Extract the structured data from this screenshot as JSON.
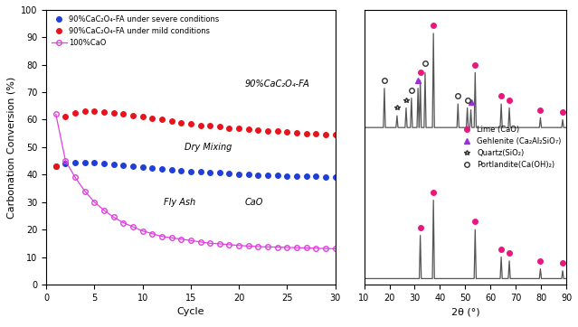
{
  "chart_data": [
    {
      "type": "line",
      "x_label": "Cycle",
      "y_label": "Carbonation Conversion (%)",
      "xlim": [
        0,
        30
      ],
      "xticks": [
        0,
        5,
        10,
        15,
        20,
        25,
        30
      ],
      "ylim": [
        0,
        100
      ],
      "yticks": [
        0,
        10,
        20,
        30,
        40,
        50,
        60,
        70,
        80,
        90,
        100
      ],
      "legend": "upper left",
      "annotations": [
        "90%CaC₂O₄-FA",
        "Dry Mixing",
        "Fly Ash",
        "CaO"
      ],
      "x": [
        1,
        2,
        3,
        4,
        5,
        6,
        7,
        8,
        9,
        10,
        11,
        12,
        13,
        14,
        15,
        16,
        17,
        18,
        19,
        20,
        21,
        22,
        23,
        24,
        25,
        26,
        27,
        28,
        29,
        30
      ],
      "series": [
        {
          "name": "90%CaC₂O₄-FA under severe conditions",
          "color": "#1f3fd6",
          "type": "scatter",
          "marker": "circle",
          "values": [
            43,
            44,
            44.5,
            44.5,
            44.3,
            44,
            43.7,
            43.4,
            43,
            42.7,
            42.4,
            42,
            41.7,
            41.5,
            41.2,
            41,
            40.8,
            40.6,
            40.4,
            40.2,
            40,
            39.9,
            39.8,
            39.7,
            39.6,
            39.5,
            39.4,
            39.3,
            39.2,
            39
          ]
        },
        {
          "name": "90%CaC₂O₄-FA under mild conditions",
          "color": "#e8141b",
          "type": "scatter",
          "marker": "circle",
          "values": [
            43,
            61,
            62.5,
            63,
            63,
            62.8,
            62.5,
            62,
            61.5,
            61,
            60.5,
            60,
            59.5,
            59,
            58.5,
            58,
            57.8,
            57.5,
            57,
            56.8,
            56.5,
            56.2,
            56,
            55.8,
            55.5,
            55.2,
            55,
            54.8,
            54.6,
            54.5
          ]
        },
        {
          "name": "100%CaO",
          "color": "#e040e0",
          "type": "line",
          "marker": "open_circle",
          "line_style": "solid",
          "values": [
            62,
            45,
            39,
            34,
            30,
            27,
            24.5,
            22.5,
            21,
            19.5,
            18.5,
            17.5,
            17,
            16.5,
            16,
            15.5,
            15,
            14.8,
            14.5,
            14.2,
            14,
            13.8,
            13.7,
            13.6,
            13.5,
            13.4,
            13.3,
            13.2,
            13.1,
            13
          ]
        }
      ]
    },
    {
      "type": "line",
      "x_label": "2θ (°)",
      "xlim": [
        10,
        90
      ],
      "xticks": [
        10,
        20,
        30,
        40,
        50,
        60,
        70,
        80,
        90
      ],
      "ylim": [
        0,
        140
      ],
      "tick_labels": "x",
      "legend": "center right",
      "series": [
        {
          "type": "line",
          "color": "#555555",
          "line_style": "solid",
          "x": [
            10,
            17.6,
            18.0,
            18.4,
            22.6,
            23.0,
            23.4,
            26.2,
            26.6,
            27.0,
            28.3,
            28.7,
            29.1,
            30.9,
            31.3,
            31.7,
            31.8,
            32.2,
            32.6,
            33.7,
            34.1,
            34.5,
            37.0,
            37.4,
            37.8,
            46.7,
            47.1,
            47.5,
            50.4,
            50.8,
            51.2,
            51.8,
            52.2,
            52.6,
            53.5,
            53.9,
            54.3,
            63.8,
            64.2,
            64.6,
            67.0,
            67.4,
            67.8,
            79.3,
            79.7,
            80.1,
            88.1,
            88.5,
            88.9,
            90
          ],
          "values": [
            80,
            80,
            100,
            80,
            80,
            86,
            80,
            80,
            90,
            80,
            80,
            95,
            80,
            80,
            100,
            80,
            80,
            104,
            80,
            80,
            108,
            80,
            80,
            128,
            80,
            80,
            92,
            80,
            80,
            90,
            80,
            80,
            89,
            80,
            80,
            108,
            80,
            80,
            92,
            80,
            80,
            90,
            80,
            80,
            85,
            80,
            80,
            84,
            80,
            80
          ]
        },
        {
          "type": "line",
          "color": "#555555",
          "line_style": "solid",
          "x": [
            10,
            31.8,
            32.2,
            32.6,
            37.0,
            37.4,
            37.8,
            53.5,
            53.9,
            54.3,
            63.8,
            64.2,
            64.6,
            67.0,
            67.4,
            67.8,
            79.3,
            79.7,
            80.1,
            88.1,
            88.5,
            88.9,
            90
          ],
          "values": [
            3,
            3,
            25,
            3,
            3,
            43,
            3,
            3,
            28,
            3,
            3,
            14,
            3,
            3,
            12,
            3,
            3,
            8,
            3,
            3,
            7,
            3,
            3
          ]
        },
        {
          "name": "Lime (CaO)",
          "type": "scatter",
          "color": "#e8177d",
          "marker": "circle",
          "x": [
            32.2,
            37.4,
            53.9,
            64.2,
            67.4,
            79.7,
            88.5,
            32.2,
            37.4,
            53.9,
            64.2,
            67.4,
            79.7,
            88.5
          ],
          "values": [
            108,
            132,
            112,
            96,
            94,
            89,
            88,
            29,
            47,
            32,
            18,
            16,
            12,
            11
          ]
        },
        {
          "name": "Gehlenite (Ca₂Al₂SiO₇)",
          "type": "scatter",
          "color": "#9b30d9",
          "marker": "triangle",
          "x": [
            31.3,
            52.2
          ],
          "values": [
            104,
            93
          ]
        },
        {
          "name": "Quartz(SiO₂)",
          "type": "scatter",
          "color": "#333333",
          "marker": "open_star",
          "x": [
            23.0,
            26.6
          ],
          "values": [
            90,
            94
          ]
        },
        {
          "name": "Portlandite(Ca(OH)₂)",
          "type": "scatter",
          "color": "#333333",
          "marker": "open_circle",
          "x": [
            18.0,
            28.7,
            34.1,
            47.1,
            50.8
          ],
          "values": [
            104,
            99,
            113,
            96,
            94
          ]
        }
      ]
    }
  ]
}
